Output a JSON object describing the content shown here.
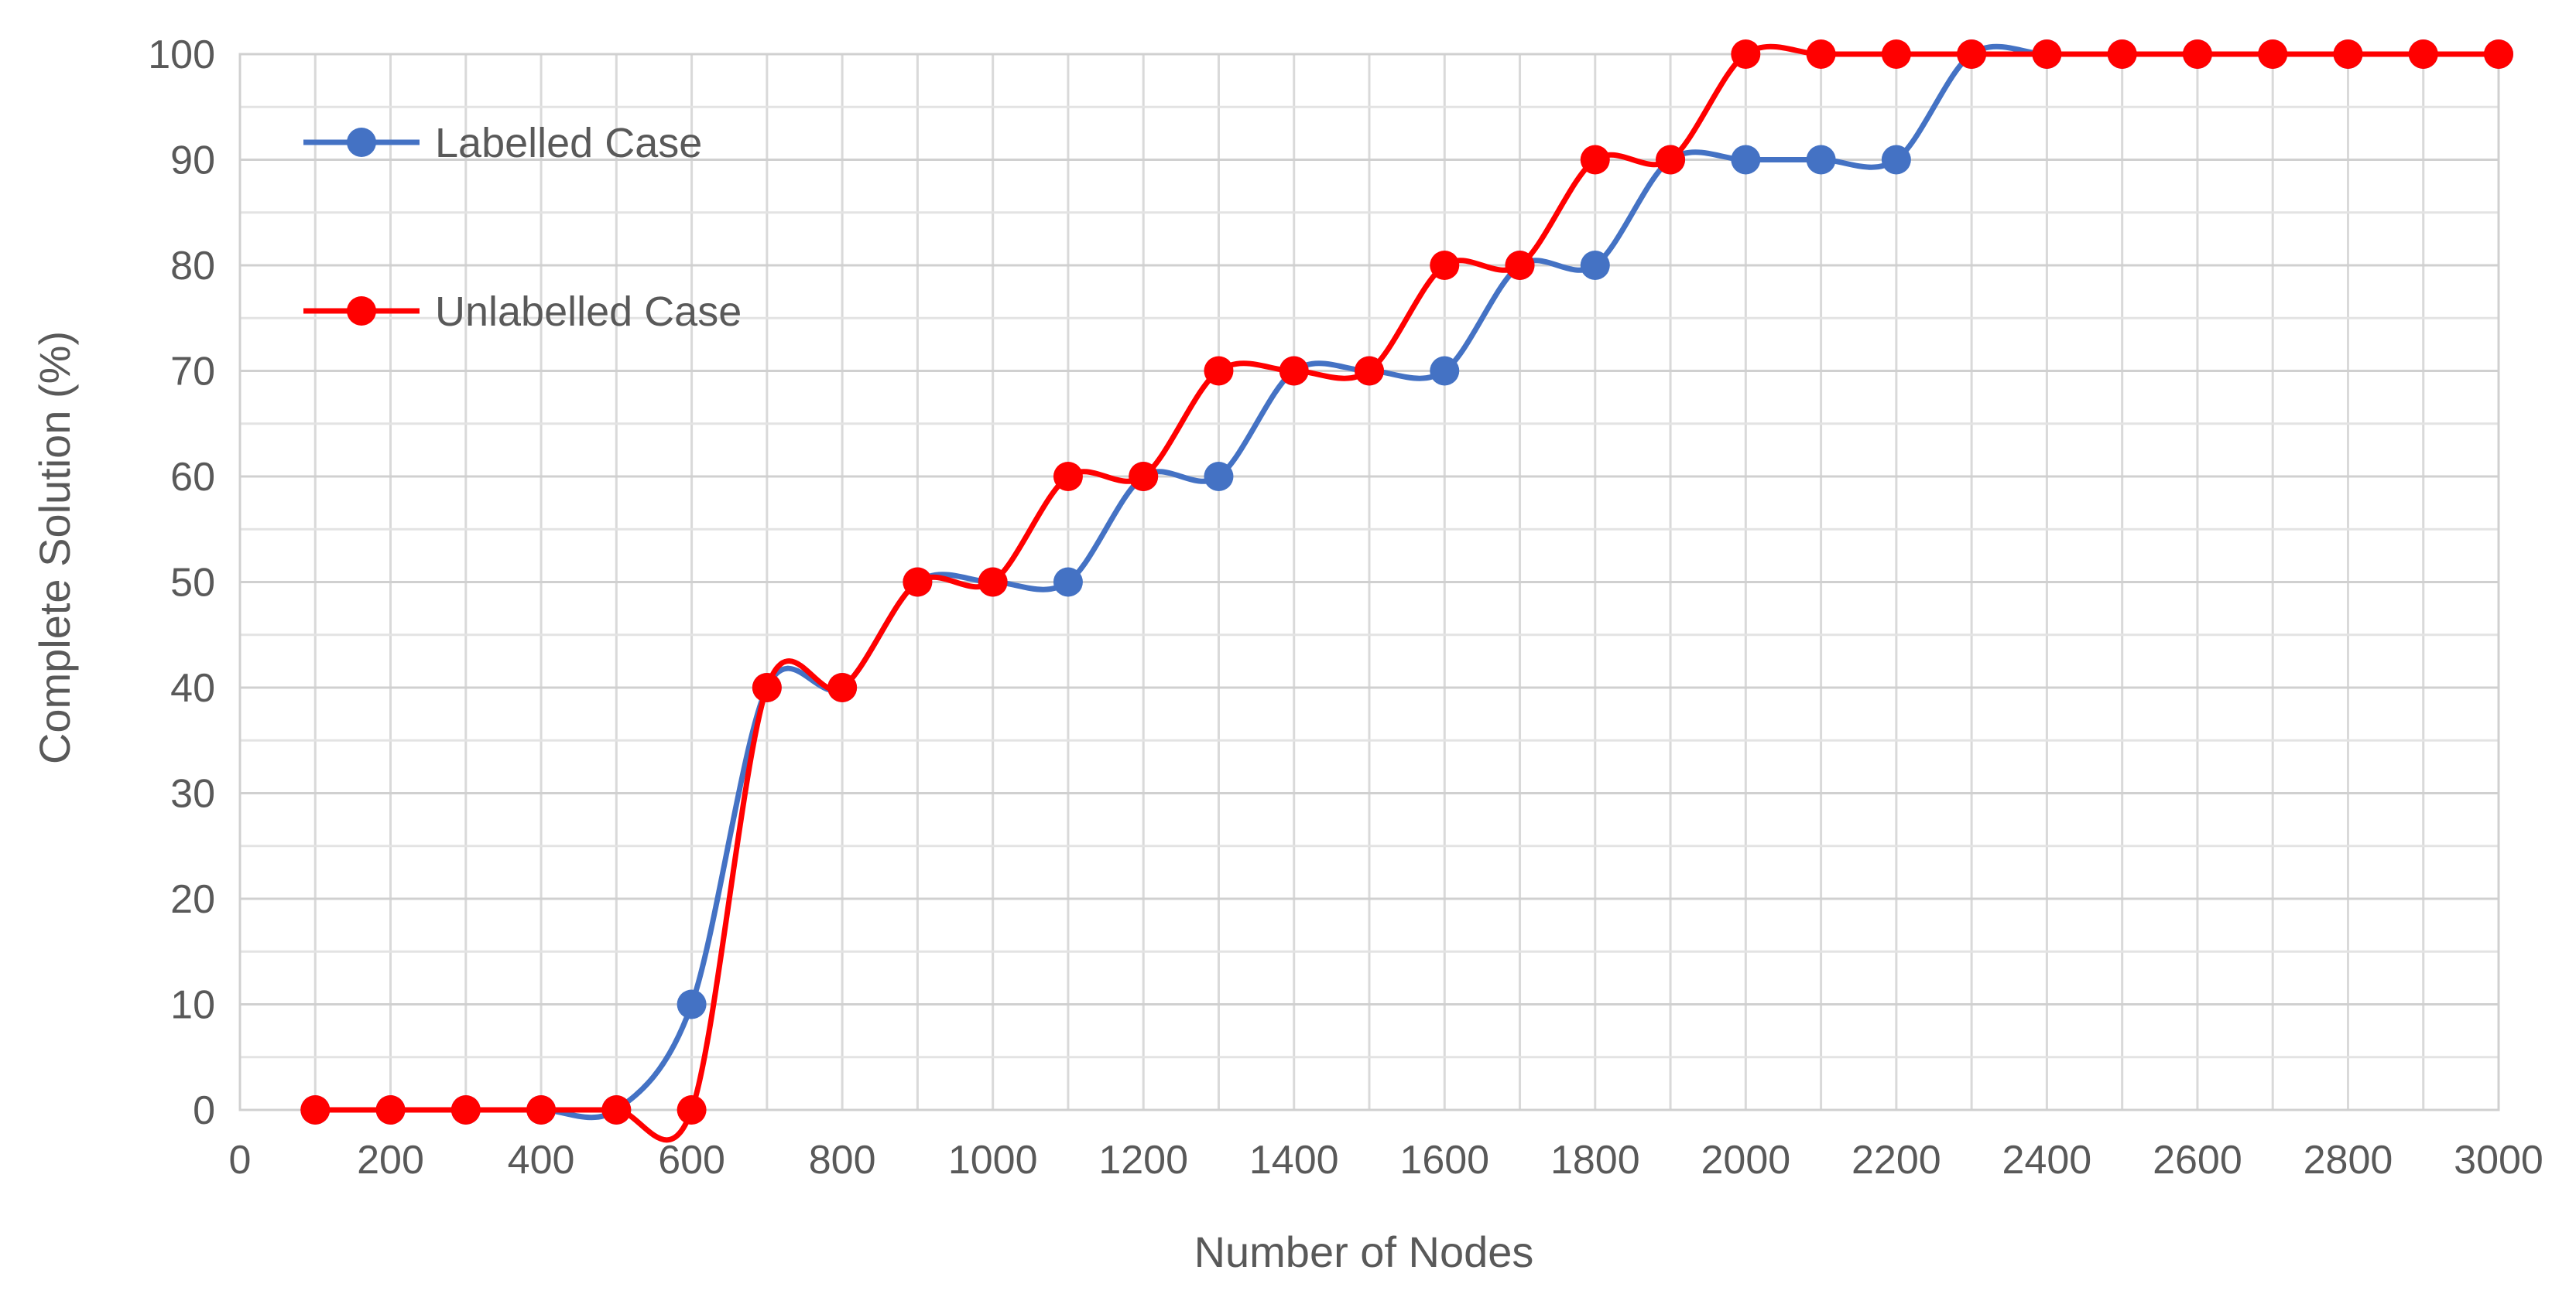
{
  "chart_data": {
    "type": "line",
    "title": "",
    "xlabel": "Number of Nodes",
    "ylabel": "Complete Solution (%)",
    "xlim": [
      0,
      3000
    ],
    "ylim": [
      0,
      100
    ],
    "x_ticks": [
      0,
      200,
      400,
      600,
      800,
      1000,
      1200,
      1400,
      1600,
      1800,
      2000,
      2200,
      2400,
      2600,
      2800,
      3000
    ],
    "y_ticks": [
      0,
      10,
      20,
      30,
      40,
      50,
      60,
      70,
      80,
      90,
      100
    ],
    "grid": "on",
    "legend_position": "top-left",
    "x": [
      100,
      200,
      300,
      400,
      500,
      600,
      700,
      800,
      900,
      1000,
      1100,
      1200,
      1300,
      1400,
      1500,
      1600,
      1700,
      1800,
      1900,
      2000,
      2100,
      2200,
      2300,
      2400,
      2500,
      2600,
      2700,
      2800,
      2900,
      3000
    ],
    "series": [
      {
        "name": "Labelled Case",
        "color": "#4472C4",
        "values": [
          0,
          0,
          0,
          0,
          0,
          10,
          40,
          40,
          50,
          50,
          50,
          60,
          60,
          70,
          70,
          70,
          80,
          80,
          90,
          90,
          90,
          90,
          100,
          100,
          100,
          100,
          100,
          100,
          100,
          100
        ]
      },
      {
        "name": "Unlabelled Case",
        "color": "#FF0000",
        "values": [
          0,
          0,
          0,
          0,
          0,
          0,
          40,
          40,
          50,
          50,
          60,
          60,
          70,
          70,
          70,
          80,
          80,
          90,
          90,
          100,
          100,
          100,
          100,
          100,
          100,
          100,
          100,
          100,
          100,
          100
        ]
      }
    ]
  }
}
